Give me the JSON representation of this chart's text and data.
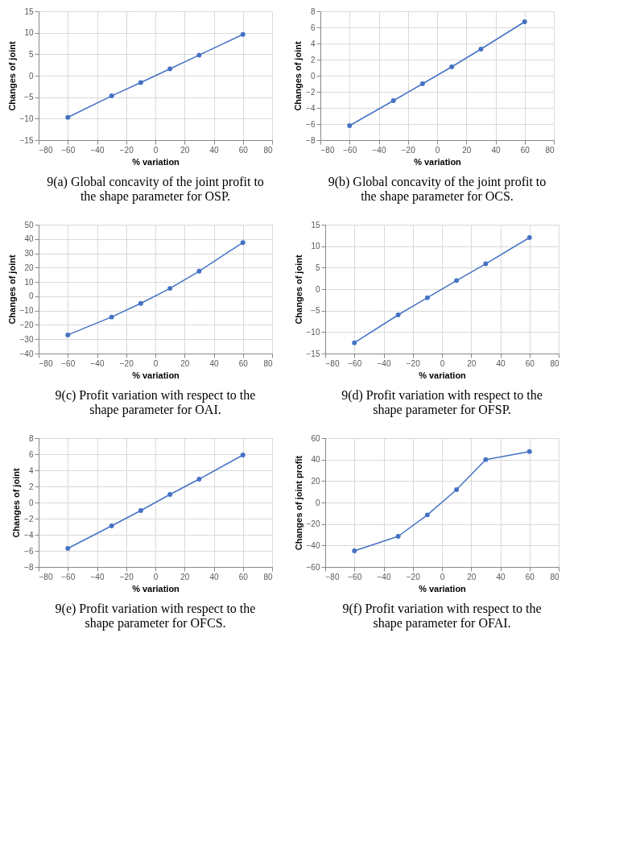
{
  "chart_data": [
    {
      "type": "line",
      "title": "9(a) Global concavity of the joint profit to the shape parameter for OSP.",
      "xlabel": "% variation",
      "ylabel": "Changes of joint",
      "x": [
        -60,
        -30,
        -10,
        10,
        30,
        60
      ],
      "series": [
        {
          "color": "#4472c4",
          "values": [
            -9.7,
            -4.7,
            -1.6,
            1.6,
            4.8,
            9.6
          ]
        }
      ],
      "xlim": [
        -80,
        80
      ],
      "xticks": [
        -80,
        -60,
        -40,
        -20,
        0,
        20,
        40,
        60,
        80
      ],
      "ylim": [
        -15,
        15
      ],
      "yticks": [
        -15,
        -10,
        -5,
        0,
        5,
        10,
        15
      ],
      "grid": true,
      "marker": "circle",
      "line_style": "solid"
    },
    {
      "type": "line",
      "title": "9(b) Global concavity of the joint profit to the shape parameter for OCS.",
      "xlabel": "% variation",
      "ylabel": "Changes of joint",
      "x": [
        -60,
        -30,
        -10,
        10,
        30,
        60
      ],
      "series": [
        {
          "color": "#4472c4",
          "values": [
            -6.2,
            -3.1,
            -1.0,
            1.1,
            3.3,
            6.7
          ]
        }
      ],
      "xlim": [
        -80,
        80
      ],
      "xticks": [
        -80,
        -60,
        -40,
        -20,
        0,
        20,
        40,
        60,
        80
      ],
      "ylim": [
        -8,
        8
      ],
      "yticks": [
        -8,
        -6,
        -4,
        -2,
        0,
        2,
        4,
        6,
        8
      ],
      "grid": true,
      "marker": "circle",
      "line_style": "solid"
    },
    {
      "type": "line",
      "title": "9(c) Profit variation with respect to the shape parameter for OAI.",
      "xlabel": "% variation",
      "ylabel": "Changes of joint",
      "x": [
        -60,
        -30,
        -10,
        10,
        30,
        60
      ],
      "series": [
        {
          "color": "#4472c4",
          "values": [
            -27,
            -14.5,
            -5,
            5.5,
            17.5,
            37.5
          ]
        }
      ],
      "xlim": [
        -80,
        80
      ],
      "xticks": [
        -80,
        -60,
        -40,
        -20,
        0,
        20,
        40,
        60,
        80
      ],
      "ylim": [
        -40,
        50
      ],
      "yticks": [
        -40,
        -30,
        -20,
        -10,
        0,
        10,
        20,
        30,
        40,
        50
      ],
      "grid": true,
      "marker": "circle",
      "line_style": "solid"
    },
    {
      "type": "line",
      "title": "9(d) Profit variation with respect to the shape parameter for OFSP.",
      "xlabel": "% variation",
      "ylabel": "Changes of joint",
      "x": [
        -60,
        -30,
        -10,
        10,
        30,
        60
      ],
      "series": [
        {
          "color": "#4472c4",
          "values": [
            -12.5,
            -6,
            -2,
            2,
            5.9,
            12
          ]
        }
      ],
      "xlim": [
        -80,
        80
      ],
      "xticks": [
        -80,
        -60,
        -40,
        -20,
        0,
        20,
        40,
        60,
        80
      ],
      "ylim": [
        -15,
        15
      ],
      "yticks": [
        -15,
        -10,
        -5,
        0,
        5,
        10,
        15
      ],
      "grid": true,
      "marker": "circle",
      "line_style": "solid"
    },
    {
      "type": "line",
      "title": "9(e) Profit variation with respect to the shape parameter for OFCS.",
      "xlabel": "% variation",
      "ylabel": "Changes of joint",
      "x": [
        -60,
        -30,
        -10,
        10,
        30,
        60
      ],
      "series": [
        {
          "color": "#4472c4",
          "values": [
            -5.7,
            -2.9,
            -1.0,
            1.0,
            2.9,
            5.9
          ]
        }
      ],
      "xlim": [
        -80,
        80
      ],
      "xticks": [
        -80,
        -60,
        -40,
        -20,
        0,
        20,
        40,
        60,
        80
      ],
      "ylim": [
        -8,
        8
      ],
      "yticks": [
        -8,
        -6,
        -4,
        -2,
        0,
        2,
        4,
        6,
        8
      ],
      "grid": true,
      "marker": "circle",
      "line_style": "solid"
    },
    {
      "type": "line",
      "title": "9(f) Profit variation with respect to the shape parameter for OFAI.",
      "xlabel": "% variation",
      "ylabel": "Changes of joint profit",
      "x": [
        -60,
        -30,
        -10,
        10,
        30,
        60
      ],
      "series": [
        {
          "color": "#4472c4",
          "values": [
            -45,
            -31.5,
            -11.5,
            12,
            40,
            47.5
          ]
        }
      ],
      "xlim": [
        -80,
        80
      ],
      "xticks": [
        -80,
        -60,
        -40,
        -20,
        0,
        20,
        40,
        60,
        80
      ],
      "ylim": [
        -60,
        60
      ],
      "yticks": [
        -60,
        -40,
        -20,
        0,
        20,
        40,
        60
      ],
      "grid": true,
      "marker": "circle",
      "line_style": "solid"
    }
  ]
}
